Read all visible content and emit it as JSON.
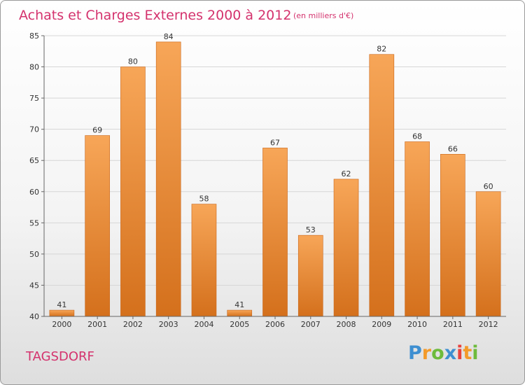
{
  "chart_data": {
    "type": "bar",
    "title": "Achats et Charges Externes 2000 à 2012",
    "subtitle": "(en milliers d'€)",
    "categories": [
      "2000",
      "2001",
      "2002",
      "2003",
      "2004",
      "2005",
      "2006",
      "2007",
      "2008",
      "2009",
      "2010",
      "2011",
      "2012"
    ],
    "values": [
      41,
      69,
      80,
      84,
      58,
      41,
      67,
      53,
      62,
      82,
      68,
      66,
      60
    ],
    "ylim": [
      40,
      85
    ],
    "yticks": [
      40,
      45,
      50,
      55,
      60,
      65,
      70,
      75,
      80,
      85
    ],
    "grid": true,
    "bar_color_top": "#f7a658",
    "bar_color_bottom": "#d4701c"
  },
  "footer": {
    "city": "TAGSDORF",
    "logo": {
      "letters": [
        "P",
        "r",
        "o",
        "x",
        "i",
        "t",
        "i"
      ],
      "colors": [
        "#3e8fd1",
        "#f39a2a",
        "#6dbb3c",
        "#3e8fd1",
        "#e8423e",
        "#f39a2a",
        "#6dbb3c"
      ]
    }
  }
}
